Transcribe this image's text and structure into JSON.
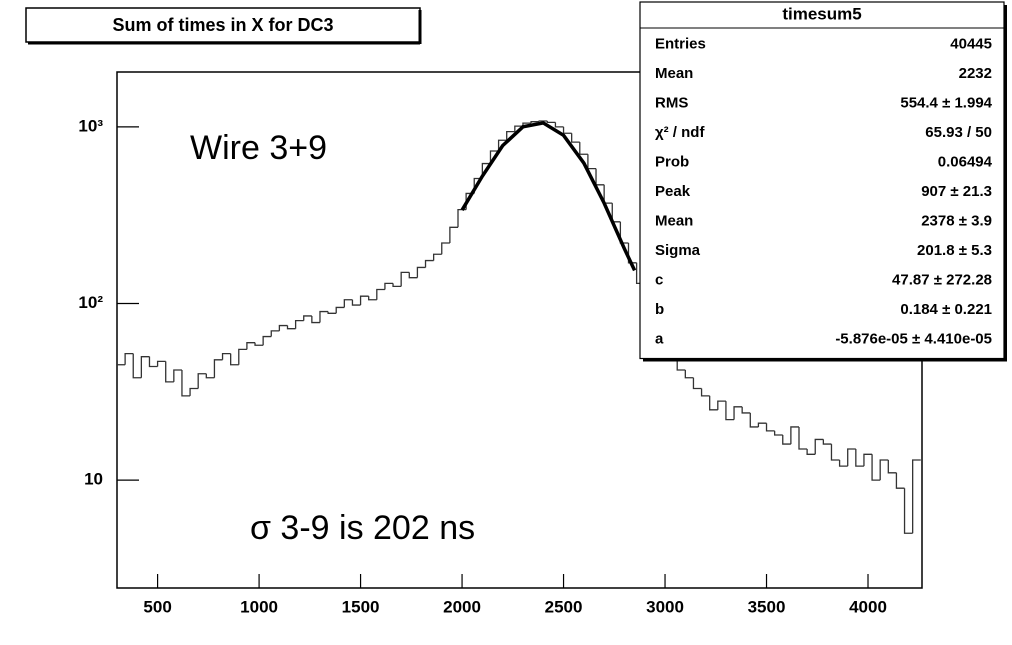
{
  "chart_data": {
    "type": "histogram",
    "title": "Sum of times in X for DC3",
    "annotations": [
      "Wire 3+9",
      "σ 3-9 is 202 ns"
    ],
    "log_y": true,
    "color": "#333333",
    "bins": [
      300,
      340,
      380,
      420,
      460,
      500,
      540,
      580,
      620,
      660,
      700,
      740,
      780,
      820,
      860,
      900,
      940,
      980,
      1020,
      1060,
      1100,
      1140,
      1180,
      1220,
      1260,
      1300,
      1340,
      1380,
      1420,
      1460,
      1500,
      1540,
      1580,
      1620,
      1660,
      1700,
      1740,
      1780,
      1820,
      1860,
      1900,
      1940,
      1980,
      2020,
      2060,
      2100,
      2140,
      2180,
      2220,
      2260,
      2300,
      2340,
      2380,
      2420,
      2460,
      2500,
      2540,
      2580,
      2620,
      2660,
      2700,
      2740,
      2780,
      2820,
      2860,
      2900,
      2940,
      2980,
      3020,
      3060,
      3100,
      3140,
      3180,
      3220,
      3260,
      3300,
      3340,
      3380,
      3420,
      3460,
      3500,
      3540,
      3580,
      3620,
      3660,
      3700,
      3740,
      3780,
      3820,
      3860,
      3900,
      3940,
      3980,
      4020,
      4060,
      4100,
      4140,
      4180,
      4220,
      4260
    ],
    "values": [
      45,
      52,
      38,
      50,
      44,
      47,
      36,
      42,
      30,
      33,
      40,
      38,
      48,
      52,
      45,
      55,
      60,
      58,
      65,
      70,
      75,
      72,
      80,
      85,
      78,
      90,
      88,
      95,
      105,
      98,
      110,
      105,
      120,
      130,
      125,
      150,
      140,
      160,
      175,
      190,
      220,
      270,
      340,
      420,
      510,
      620,
      730,
      840,
      940,
      1010,
      1050,
      1070,
      1080,
      1060,
      1000,
      920,
      820,
      700,
      580,
      470,
      370,
      290,
      220,
      170,
      130,
      100,
      78,
      60,
      50,
      42,
      38,
      33,
      30,
      25,
      28,
      22,
      26,
      24,
      20,
      21,
      19,
      18,
      16,
      20,
      15,
      14,
      17,
      16,
      13,
      12,
      15,
      12,
      14,
      10,
      13,
      11,
      9,
      5,
      13
    ],
    "fit": {
      "color": "#000000",
      "x": [
        2000,
        2100,
        2200,
        2300,
        2400,
        2500,
        2600,
        2700,
        2800,
        2850
      ],
      "values": [
        338,
        526,
        783,
        1001,
        1053,
        896,
        624,
        370,
        204,
        154
      ]
    },
    "xlim": [
      300,
      4266
    ],
    "ylim": [
      2.45,
      2045
    ],
    "xticks": [
      500,
      1000,
      1500,
      2000,
      2500,
      3000,
      3500,
      4000
    ],
    "yticks": [
      {
        "value": 10,
        "label": "10"
      },
      {
        "value": 100,
        "label": "10²"
      },
      {
        "value": 1000,
        "label": "10³"
      }
    ],
    "stats_box": {
      "title": "timesum5",
      "rows": [
        [
          "Entries",
          "40445"
        ],
        [
          "Mean",
          "2232"
        ],
        [
          "RMS",
          "554.4 ±  1.994"
        ],
        [
          "χ² / ndf",
          "65.93 / 50"
        ],
        [
          "Prob",
          "0.06494"
        ],
        [
          "Peak",
          "907 ± 21.3"
        ],
        [
          "Mean",
          "2378 ± 3.9"
        ],
        [
          "Sigma",
          "201.8 ± 5.3"
        ],
        [
          "c",
          "47.87 ± 272.28"
        ],
        [
          "b",
          "0.184 ± 0.221"
        ],
        [
          "a",
          "-5.876e-05 ± 4.410e-05"
        ]
      ]
    }
  }
}
